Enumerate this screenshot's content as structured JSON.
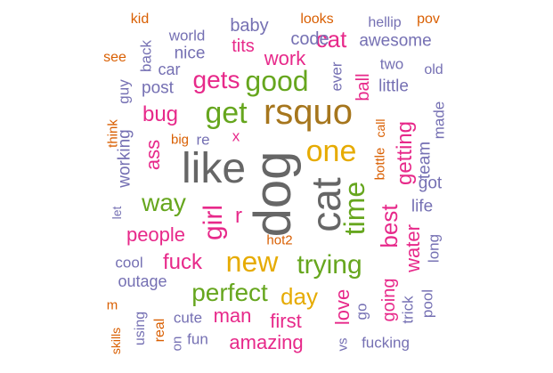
{
  "palette": {
    "purple": "#7570B3",
    "orange": "#D95F02",
    "magenta": "#E7298A",
    "green": "#66A61E",
    "gold": "#E6AB02",
    "brown": "#A6761D",
    "gray": "#666666",
    "teal": "#1B9E77"
  },
  "words": [
    "dog",
    "like",
    "cat",
    "rsquo",
    "one",
    "time",
    "new",
    "get",
    "good",
    "girl",
    "trying",
    "perfect",
    "gets",
    "way",
    "fuck",
    "best",
    "getting",
    "day",
    "bug",
    "work",
    "water",
    "love",
    "people",
    "ass",
    "man",
    "amazing",
    "first",
    "r",
    "x",
    "tits",
    "cat",
    "code",
    "baby",
    "awesome",
    "little",
    "ball",
    "going",
    "post",
    "working",
    "nice",
    "world",
    "fun",
    "cute",
    "team",
    "got",
    "life",
    "outage",
    "cool",
    "long",
    "pool",
    "fucking",
    "trick",
    "made",
    "ever",
    "two",
    "old",
    "hellip",
    "looks",
    "kid",
    "pov",
    "back",
    "see",
    "guy",
    "car",
    "think",
    "big",
    "re",
    "bottle",
    "call",
    "let",
    "hot2",
    "go",
    "vs",
    "skills",
    "using",
    "real",
    "on",
    "m"
  ]
}
